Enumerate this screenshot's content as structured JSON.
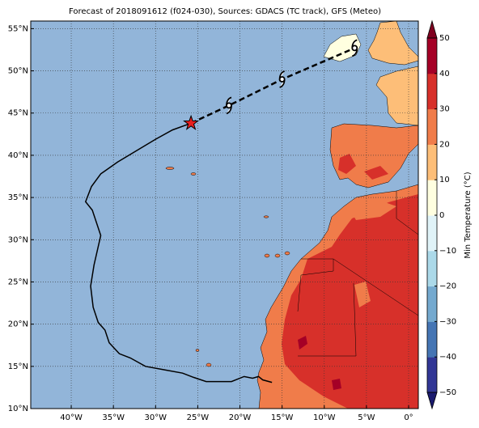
{
  "title": "Forecast of 2018091612 (f024-030), Sources: GDACS (TC track), GFS (Meteo)",
  "map": {
    "xlim": [
      -44.8,
      1.15
    ],
    "ylim": [
      10,
      55.9
    ],
    "xticks": [
      {
        "value": -40,
        "label": "40°W"
      },
      {
        "value": -35,
        "label": "35°W"
      },
      {
        "value": -30,
        "label": "30°W"
      },
      {
        "value": -25,
        "label": "25°W"
      },
      {
        "value": -20,
        "label": "20°W"
      },
      {
        "value": -15,
        "label": "15°W"
      },
      {
        "value": -10,
        "label": "10°W"
      },
      {
        "value": -5,
        "label": "5°W"
      },
      {
        "value": 0,
        "label": "0°"
      }
    ],
    "yticks": [
      {
        "value": 10,
        "label": "10°N"
      },
      {
        "value": 15,
        "label": "15°N"
      },
      {
        "value": 20,
        "label": "20°N"
      },
      {
        "value": 25,
        "label": "25°N"
      },
      {
        "value": 30,
        "label": "30°N"
      },
      {
        "value": 35,
        "label": "35°N"
      },
      {
        "value": 40,
        "label": "40°N"
      },
      {
        "value": 45,
        "label": "45°N"
      },
      {
        "value": 50,
        "label": "50°N"
      },
      {
        "value": 55,
        "label": "55°N"
      }
    ],
    "grid": true,
    "track": {
      "past": {
        "color": "#000000",
        "lon": [
          -25.8,
          -28,
          -30,
          -32,
          -34.5,
          -36.5,
          -37.6,
          -38.3,
          -37.5,
          -36.5,
          -37.3,
          -37.7,
          -37.4,
          -36.8,
          -36,
          -35.5,
          -34.3,
          -33,
          -31.2,
          -29,
          -26.8,
          -25.5,
          -24,
          -21,
          -19.5,
          -18.5,
          -17.8,
          -17.3,
          -16.2
        ],
        "lat": [
          43.8,
          43,
          41.9,
          40.7,
          39.2,
          37.8,
          36.3,
          34.5,
          33.5,
          30.5,
          27,
          24.5,
          22,
          20.2,
          19.3,
          17.8,
          16.5,
          16,
          15,
          14.6,
          14.2,
          13.7,
          13.2,
          13.2,
          13.8,
          13.6,
          13.8,
          13.4,
          13.1
        ]
      },
      "forecast": {
        "color": "#000000",
        "lon": [
          -25.8,
          -21.3,
          -15,
          -6.4
        ],
        "lat": [
          43.8,
          45.9,
          49,
          52.7
        ]
      },
      "current": {
        "color": "#e8201f",
        "lon": -25.8,
        "lat": 43.8
      }
    }
  },
  "colorbar": {
    "label": "Min Temperature (°C)",
    "lim": [
      -50,
      50
    ],
    "ticks": [
      {
        "value": -50,
        "label": "−50"
      },
      {
        "value": -40,
        "label": "−40"
      },
      {
        "value": -30,
        "label": "−30"
      },
      {
        "value": -20,
        "label": "−20"
      },
      {
        "value": -10,
        "label": "−10"
      },
      0,
      10,
      20,
      30,
      40,
      50
    ],
    "colors": [
      "#313695",
      "#4575b4",
      "#74a9cf",
      "#abd9e9",
      "#e0f3f8",
      "#ffffe0",
      "#fdbe78",
      "#f07c4a",
      "#d7302a",
      "#a50026"
    ],
    "extend_colors": [
      "#1a1a6e",
      "#7f0020"
    ]
  }
}
